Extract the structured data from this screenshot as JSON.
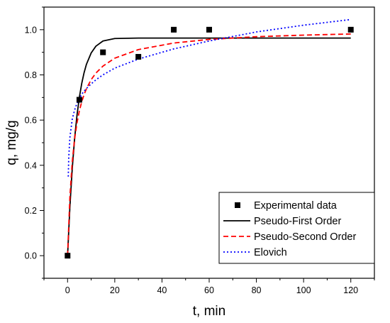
{
  "chart_data": {
    "type": "scatter",
    "title": "",
    "xlabel": "t, min",
    "ylabel": "q, mg/g",
    "xlim": [
      -10,
      130
    ],
    "ylim": [
      -0.1,
      1.1
    ],
    "xticks": [
      "0",
      "20",
      "40",
      "60",
      "80",
      "100",
      "120"
    ],
    "yticks": [
      "0.0",
      "0.2",
      "0.4",
      "0.6",
      "0.8",
      "1.0"
    ],
    "grid": false,
    "legend_position": "bottom-right",
    "series": [
      {
        "name": "Experimental data",
        "type": "scatter",
        "marker": "square",
        "color": "#000000",
        "x": [
          0,
          5,
          15,
          30,
          45,
          60,
          120
        ],
        "y": [
          0.0,
          0.69,
          0.9,
          0.88,
          1.0,
          1.0,
          1.0
        ]
      },
      {
        "name": "Pseudo-First Order",
        "type": "line",
        "style": "solid",
        "color": "#000000",
        "x": [
          0,
          1,
          2,
          3,
          4,
          5,
          6,
          7,
          8,
          10,
          12,
          15,
          20,
          30,
          45,
          60,
          80,
          100,
          120
        ],
        "y": [
          0.0,
          0.219,
          0.388,
          0.52,
          0.622,
          0.701,
          0.762,
          0.81,
          0.847,
          0.897,
          0.927,
          0.95,
          0.961,
          0.963,
          0.963,
          0.963,
          0.963,
          0.963,
          0.963
        ]
      },
      {
        "name": "Pseudo-Second Order",
        "type": "line",
        "style": "dashed",
        "color": "#ff0000",
        "x": [
          0,
          1,
          2,
          3,
          4,
          5,
          6,
          7,
          8,
          10,
          12,
          15,
          20,
          30,
          45,
          60,
          80,
          100,
          120
        ],
        "y": [
          0.0,
          0.263,
          0.417,
          0.518,
          0.588,
          0.641,
          0.681,
          0.713,
          0.739,
          0.779,
          0.808,
          0.839,
          0.874,
          0.912,
          0.941,
          0.957,
          0.969,
          0.976,
          0.981
        ]
      },
      {
        "name": "Elovich",
        "type": "line",
        "style": "dotted",
        "color": "#0000ff",
        "x": [
          0.3,
          0.5,
          1,
          2,
          3,
          4,
          5,
          6,
          8,
          10,
          12,
          15,
          20,
          30,
          45,
          60,
          80,
          100,
          120
        ],
        "y": [
          0.35,
          0.435,
          0.525,
          0.605,
          0.645,
          0.675,
          0.695,
          0.715,
          0.74,
          0.76,
          0.778,
          0.8,
          0.83,
          0.87,
          0.915,
          0.95,
          0.99,
          1.02,
          1.045
        ]
      }
    ]
  }
}
